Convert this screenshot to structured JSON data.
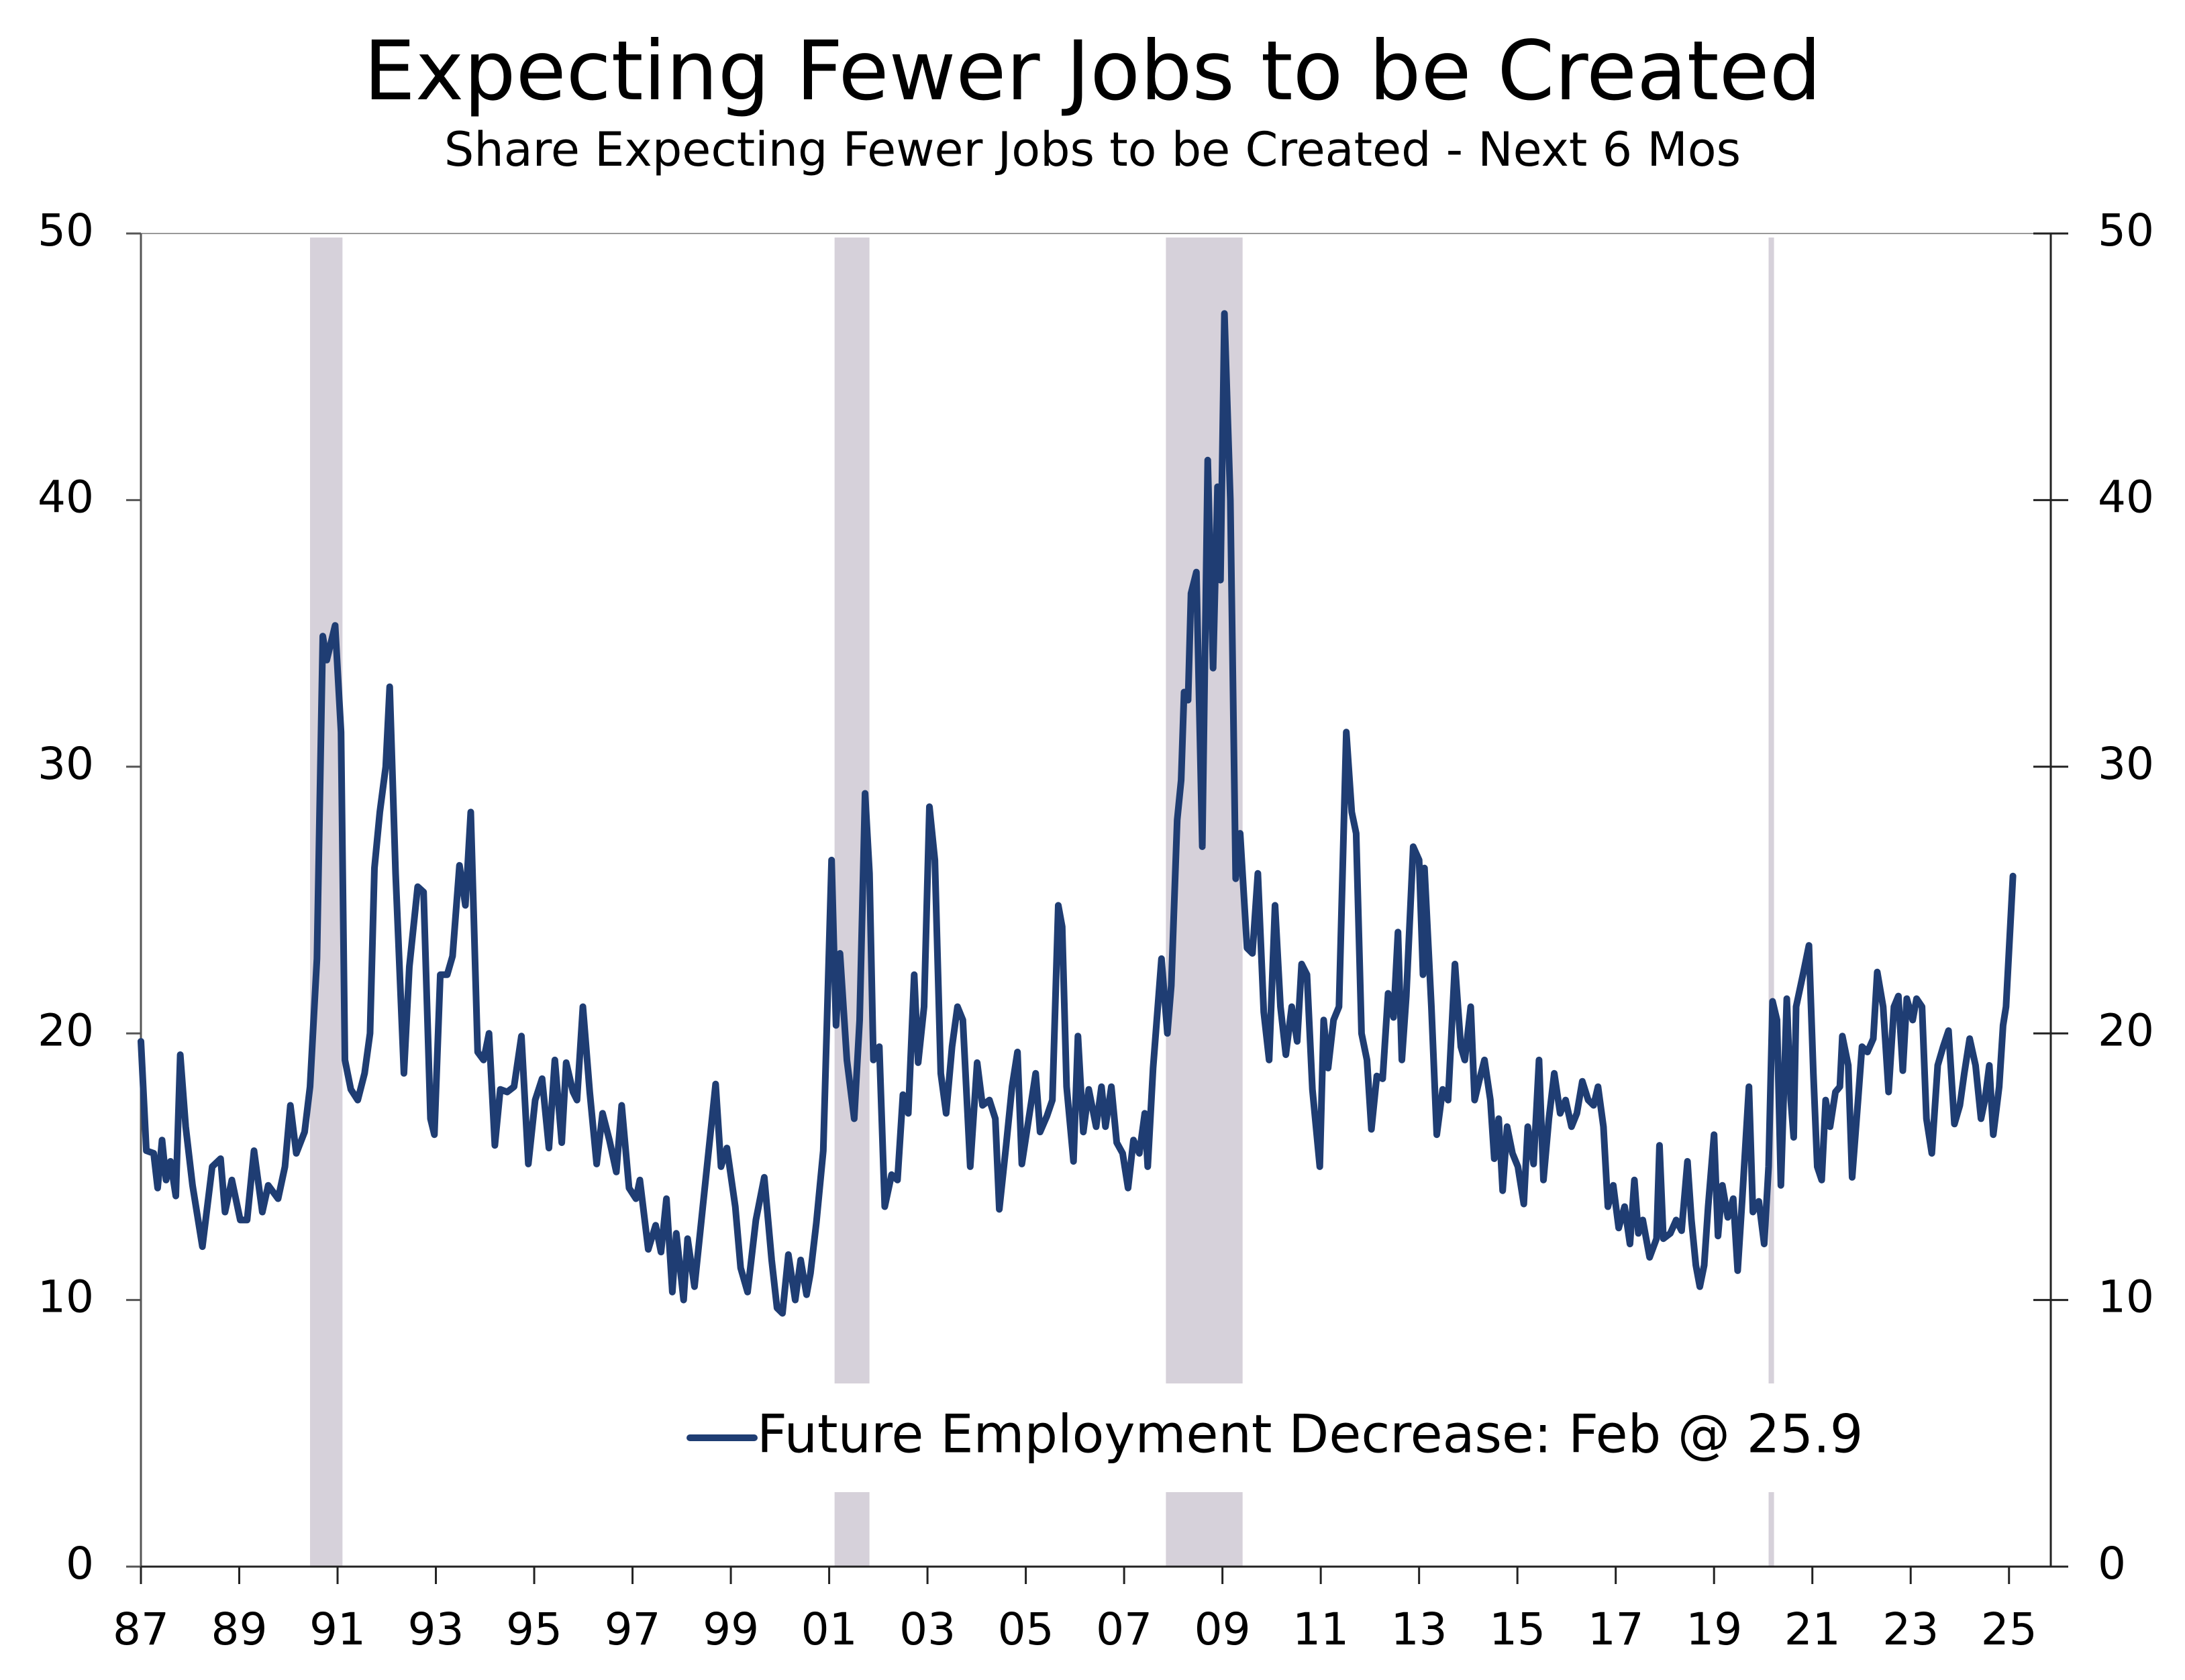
{
  "chart_data": {
    "type": "line",
    "title": "Expecting Fewer Jobs to be Created",
    "subtitle": "Share Expecting Fewer Jobs to be Created - Next 6 Mos",
    "xlim": [
      1987,
      2025.85
    ],
    "xticks": [
      {
        "value": 1987,
        "label": "87"
      },
      {
        "value": 1989,
        "label": "89"
      },
      {
        "value": 1991,
        "label": "91"
      },
      {
        "value": 1993,
        "label": "93"
      },
      {
        "value": 1995,
        "label": "95"
      },
      {
        "value": 1997,
        "label": "97"
      },
      {
        "value": 1999,
        "label": "99"
      },
      {
        "value": 2001,
        "label": "01"
      },
      {
        "value": 2003,
        "label": "03"
      },
      {
        "value": 2005,
        "label": "05"
      },
      {
        "value": 2007,
        "label": "07"
      },
      {
        "value": 2009,
        "label": "09"
      },
      {
        "value": 2011,
        "label": "11"
      },
      {
        "value": 2013,
        "label": "13"
      },
      {
        "value": 2015,
        "label": "15"
      },
      {
        "value": 2017,
        "label": "17"
      },
      {
        "value": 2019,
        "label": "19"
      },
      {
        "value": 2021,
        "label": "21"
      },
      {
        "value": 2023,
        "label": "23"
      },
      {
        "value": 2025,
        "label": "25"
      }
    ],
    "ylim": [
      0,
      50
    ],
    "yticks": [
      0,
      10,
      20,
      30,
      40,
      50
    ],
    "y2lim": [
      0,
      50
    ],
    "y2ticks": [
      0,
      10,
      20,
      30,
      40,
      50
    ],
    "recessions": [
      [
        1990.44,
        1991.1
      ],
      [
        2001.11,
        2001.82
      ],
      [
        2007.85,
        2009.41
      ],
      [
        2020.11,
        2020.22
      ]
    ],
    "recession_color": "#d6d1da",
    "legend": "bottom-right",
    "x": [
      1987.0,
      1987.11,
      1987.26,
      1987.34,
      1987.43,
      1987.51,
      1987.6,
      1987.71,
      1987.8,
      1987.91,
      1988.05,
      1988.25,
      1988.45,
      1988.62,
      1988.71,
      1988.85,
      1989.02,
      1989.16,
      1989.3,
      1989.47,
      1989.59,
      1989.79,
      1989.93,
      1990.04,
      1990.16,
      1990.33,
      1990.44,
      1990.58,
      1990.7,
      1990.78,
      1990.95,
      1991.07,
      1991.15,
      1991.27,
      1991.41,
      1991.55,
      1991.66,
      1991.75,
      1991.86,
      1991.98,
      1992.06,
      1992.18,
      1992.35,
      1992.46,
      1992.63,
      1992.75,
      1992.89,
      1992.97,
      1993.09,
      1993.23,
      1993.34,
      1993.48,
      1993.6,
      1993.71,
      1993.85,
      1993.97,
      1994.08,
      1994.2,
      1994.31,
      1994.45,
      1994.59,
      1994.74,
      1994.88,
      1995.02,
      1995.16,
      1995.3,
      1995.42,
      1995.56,
      1995.65,
      1995.79,
      1995.87,
      1995.99,
      1996.13,
      1996.27,
      1996.39,
      1996.53,
      1996.67,
      1996.78,
      1996.93,
      1997.07,
      1997.15,
      1997.32,
      1997.47,
      1997.58,
      1997.69,
      1997.81,
      1997.89,
      1998.04,
      1998.12,
      1998.26,
      1998.43,
      1998.69,
      1998.8,
      1998.92,
      1999.09,
      1999.2,
      1999.34,
      1999.51,
      1999.68,
      1999.83,
      1999.94,
      2000.05,
      2000.17,
      2000.31,
      2000.42,
      2000.54,
      2000.62,
      2000.74,
      2000.88,
      2001.05,
      2001.14,
      2001.22,
      2001.36,
      2001.51,
      2001.62,
      2001.73,
      2001.82,
      2001.9,
      2002.02,
      2002.13,
      2002.27,
      2002.39,
      2002.5,
      2002.61,
      2002.73,
      2002.81,
      2002.93,
      2003.04,
      2003.15,
      2003.27,
      2003.38,
      2003.5,
      2003.61,
      2003.72,
      2003.87,
      2004.01,
      2004.12,
      2004.26,
      2004.38,
      2004.46,
      2004.6,
      2004.72,
      2004.83,
      2004.92,
      2005.06,
      2005.2,
      2005.29,
      2005.43,
      2005.54,
      2005.66,
      2005.74,
      2005.83,
      2005.97,
      2006.06,
      2006.17,
      2006.28,
      2006.43,
      2006.54,
      2006.62,
      2006.74,
      2006.85,
      2006.97,
      2007.08,
      2007.19,
      2007.31,
      2007.42,
      2007.48,
      2007.59,
      2007.76,
      2007.88,
      2007.96,
      2008.08,
      2008.16,
      2008.22,
      2008.3,
      2008.36,
      2008.47,
      2008.59,
      2008.7,
      2008.81,
      2008.9,
      2008.96,
      2009.04,
      2009.16,
      2009.27,
      2009.36,
      2009.5,
      2009.61,
      2009.72,
      2009.84,
      2009.95,
      2010.07,
      2010.18,
      2010.29,
      2010.41,
      2010.52,
      2010.61,
      2010.72,
      2010.83,
      2010.98,
      2011.06,
      2011.15,
      2011.26,
      2011.37,
      2011.52,
      2011.63,
      2011.72,
      2011.83,
      2011.94,
      2012.03,
      2012.14,
      2012.26,
      2012.37,
      2012.48,
      2012.57,
      2012.65,
      2012.74,
      2012.88,
      2013.0,
      2013.08,
      2013.11,
      2013.25,
      2013.36,
      2013.48,
      2013.59,
      2013.73,
      2013.85,
      2013.93,
      2014.05,
      2014.13,
      2014.22,
      2014.33,
      2014.45,
      2014.53,
      2014.62,
      2014.7,
      2014.79,
      2014.9,
      2015.01,
      2015.13,
      2015.21,
      2015.33,
      2015.44,
      2015.53,
      2015.64,
      2015.75,
      2015.87,
      2015.98,
      2016.1,
      2016.21,
      2016.32,
      2016.44,
      2016.55,
      2016.64,
      2016.75,
      2016.84,
      2016.95,
      2017.06,
      2017.18,
      2017.29,
      2017.38,
      2017.46,
      2017.55,
      2017.69,
      2017.83,
      2017.89,
      2017.97,
      2018.11,
      2018.23,
      2018.34,
      2018.46,
      2018.54,
      2018.63,
      2018.71,
      2018.8,
      2018.88,
      2019.0,
      2019.08,
      2019.17,
      2019.28,
      2019.39,
      2019.48,
      2019.57,
      2019.71,
      2019.79,
      2019.91,
      2020.02,
      2020.11,
      2020.19,
      2020.28,
      2020.36,
      2020.48,
      2020.56,
      2020.62,
      2020.67,
      2020.82,
      2020.93,
      2021.02,
      2021.1,
      2021.19,
      2021.27,
      2021.36,
      2021.47,
      2021.56,
      2021.61,
      2021.73,
      2021.81,
      2021.93,
      2022.01,
      2022.12,
      2022.24,
      2022.32,
      2022.44,
      2022.55,
      2022.66,
      2022.75,
      2022.84,
      2022.92,
      2023.04,
      2023.12,
      2023.23,
      2023.32,
      2023.43,
      2023.55,
      2023.66,
      2023.77,
      2023.89,
      2024.0,
      2024.09,
      2024.2,
      2024.32,
      2024.43,
      2024.51,
      2024.6,
      2024.68,
      2024.8,
      2024.88,
      2024.94,
      2025.08
    ],
    "series": [
      {
        "name": "Future Employment Decrease: Feb @ 25.9",
        "color": "#1f3d73",
        "values": [
          19.7,
          15.6,
          15.5,
          14.2,
          16.0,
          14.5,
          15.2,
          13.9,
          19.2,
          16.5,
          14.3,
          12.0,
          15.0,
          15.3,
          13.3,
          14.5,
          13.0,
          13.0,
          15.6,
          13.3,
          14.3,
          13.8,
          15.0,
          17.3,
          15.5,
          16.3,
          18.0,
          22.8,
          34.9,
          34.0,
          35.3,
          31.3,
          19.0,
          17.9,
          17.5,
          18.5,
          20.0,
          26.2,
          28.3,
          30.0,
          33.0,
          26.0,
          18.5,
          22.5,
          25.5,
          25.3,
          16.8,
          16.2,
          22.2,
          22.2,
          22.9,
          26.3,
          24.8,
          28.3,
          19.3,
          19.0,
          20.0,
          15.8,
          17.9,
          17.8,
          18.0,
          19.9,
          15.1,
          17.5,
          18.3,
          15.7,
          19.0,
          15.9,
          18.9,
          17.8,
          17.5,
          21.0,
          17.8,
          15.1,
          17.0,
          16.0,
          14.8,
          17.3,
          14.2,
          13.8,
          14.5,
          11.9,
          12.8,
          11.8,
          13.8,
          10.3,
          12.5,
          10.0,
          12.3,
          10.5,
          13.5,
          18.1,
          15.0,
          15.7,
          13.5,
          11.2,
          10.3,
          13.0,
          14.6,
          11.5,
          9.7,
          9.5,
          11.7,
          10.0,
          11.5,
          10.2,
          11.0,
          12.9,
          15.6,
          26.5,
          20.3,
          23.0,
          19.0,
          16.8,
          20.5,
          29.0,
          26.0,
          19.0,
          19.5,
          13.5,
          14.7,
          14.5,
          17.7,
          17.0,
          22.2,
          18.9,
          21.0,
          28.5,
          26.5,
          18.5,
          17.0,
          19.5,
          21.0,
          20.5,
          15.0,
          18.9,
          17.3,
          17.5,
          16.8,
          13.4,
          15.8,
          18.0,
          19.3,
          15.1,
          16.8,
          18.5,
          16.3,
          16.9,
          17.5,
          24.8,
          24.0,
          18.0,
          15.2,
          19.9,
          16.3,
          17.9,
          16.5,
          18.0,
          16.5,
          18.0,
          15.9,
          15.5,
          14.2,
          16.0,
          15.5,
          17.0,
          15.0,
          18.7,
          22.8,
          20.0,
          21.8,
          28.0,
          29.5,
          32.8,
          32.5,
          36.5,
          37.3,
          27.0,
          41.5,
          33.7,
          40.5,
          37.0,
          47.0,
          40.0,
          25.8,
          27.5,
          23.2,
          23.0,
          26.0,
          20.8,
          19.0,
          24.8,
          21.0,
          19.2,
          21.0,
          19.7,
          22.6,
          22.2,
          17.9,
          15.0,
          20.5,
          18.7,
          20.5,
          21.0,
          31.3,
          28.3,
          27.5,
          20.0,
          19.0,
          16.4,
          18.4,
          18.3,
          21.5,
          20.6,
          23.8,
          19.0,
          21.4,
          27.0,
          26.5,
          22.2,
          26.2,
          21.0,
          16.2,
          17.9,
          17.5,
          22.6,
          19.5,
          19.0,
          21.0,
          17.5,
          18.2,
          19.0,
          17.5,
          15.3,
          16.8,
          14.1,
          16.5,
          15.5,
          15.0,
          13.6,
          16.5,
          15.1,
          19.0,
          14.5,
          16.8,
          18.5,
          17.0,
          17.5,
          16.5,
          17.0,
          18.2,
          17.5,
          17.3,
          18.0,
          16.5,
          13.5,
          14.3,
          12.7,
          13.5,
          12.1,
          14.5,
          12.5,
          13.0,
          11.6,
          12.3,
          15.8,
          12.3,
          12.5,
          13.0,
          12.6,
          15.2,
          13.0,
          11.3,
          10.5,
          11.3,
          13.5,
          16.2,
          12.4,
          14.3,
          13.1,
          13.8,
          11.1,
          13.7,
          18.0,
          13.3,
          13.7,
          12.1,
          15.0,
          21.2,
          20.5,
          14.3,
          21.3,
          17.5,
          16.1,
          21.0,
          22.3,
          23.3,
          18.5,
          15.0,
          14.5,
          17.5,
          16.5,
          17.8,
          18.0,
          19.9,
          18.8,
          14.6,
          17.5,
          19.5,
          19.3,
          19.8,
          22.3,
          21.0,
          17.8,
          21.0,
          21.4,
          18.6,
          21.3,
          20.5,
          21.3,
          21.0,
          16.8,
          15.5,
          18.8,
          19.5,
          20.1,
          16.6,
          17.3,
          18.5,
          19.8,
          18.8,
          16.8,
          17.5,
          18.8,
          16.2,
          18.0,
          20.3,
          21.0,
          25.9
        ]
      }
    ]
  }
}
